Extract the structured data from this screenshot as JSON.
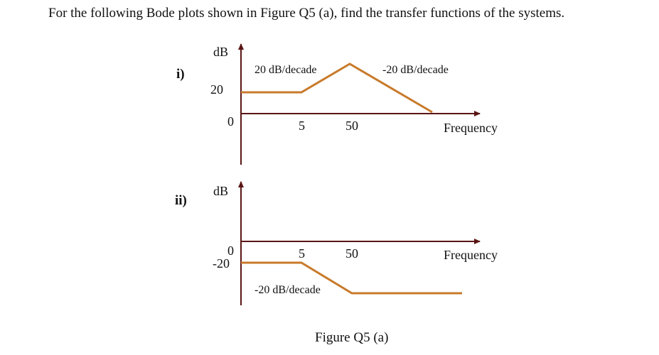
{
  "question": "For the following Bode plots shown in Figure Q5 (a), find the transfer functions of the systems.",
  "caption": "Figure Q5 (a)",
  "plots": [
    {
      "label": "i)",
      "ylabel": "dB",
      "xlabel": "Frequency",
      "y_ticks": [
        "20",
        "0"
      ],
      "x_ticks": [
        "5",
        "50"
      ],
      "slope_labels": [
        "20 dB/decade",
        "-20 dB/decade"
      ]
    },
    {
      "label": "ii)",
      "ylabel": "dB",
      "xlabel": "Frequency",
      "y_ticks": [
        "0",
        "-20"
      ],
      "x_ticks": [
        "5",
        "50"
      ],
      "slope_labels": [
        "-20 dB/decade"
      ]
    }
  ],
  "colors": {
    "axis": "#5a1414",
    "response": "#c87a2a"
  }
}
